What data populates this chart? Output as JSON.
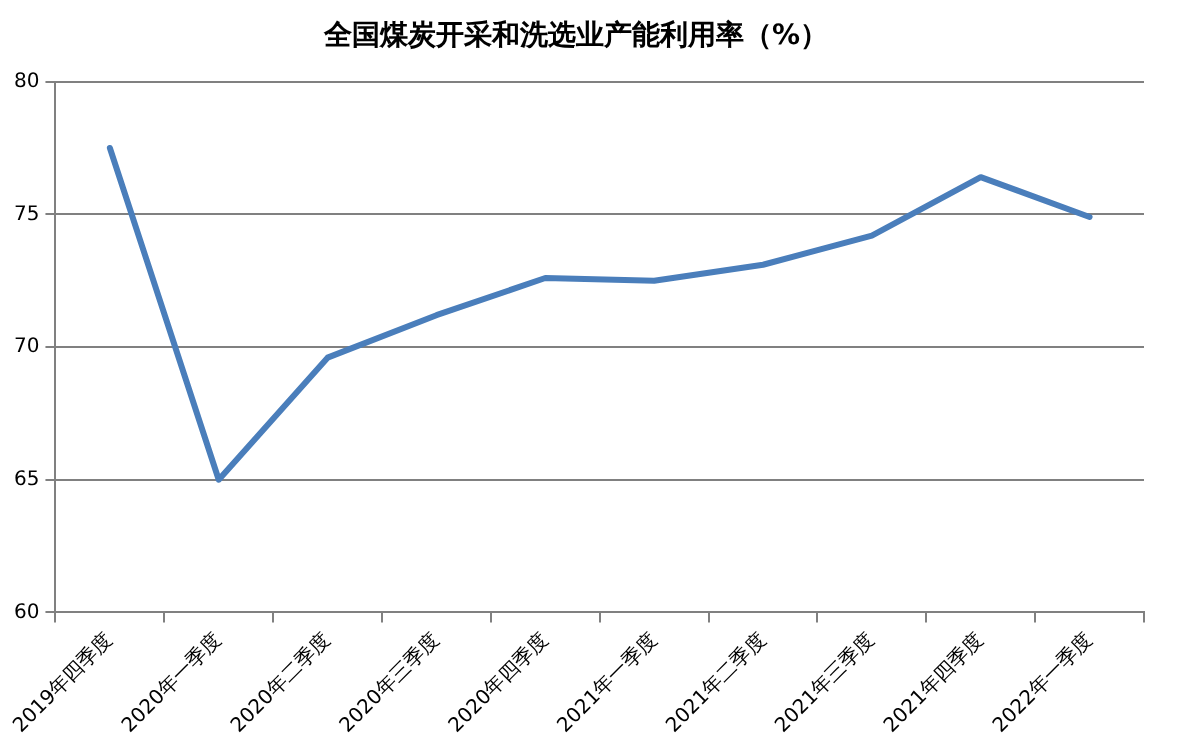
{
  "chart_data": {
    "type": "line",
    "title": "全国煤炭开采和洗选业产能利用率（%）",
    "categories": [
      "2019年四季度",
      "2020年一季度",
      "2020年二季度",
      "2020年三季度",
      "2020年四季度",
      "2021年一季度",
      "2021年二季度",
      "2021年三季度",
      "2021年四季度",
      "2022年一季度"
    ],
    "series": [
      {
        "color": "#4a7ebb",
        "values": [
          77.5,
          65,
          69.6,
          71.2,
          72.6,
          72.5,
          73.1,
          74.2,
          76.4,
          74.9
        ]
      }
    ],
    "ylim": [
      60,
      80
    ],
    "yticks": [
      60,
      65,
      70,
      75,
      80
    ],
    "grid": "y",
    "legend": false,
    "marker": "none",
    "line_style": "solid"
  }
}
